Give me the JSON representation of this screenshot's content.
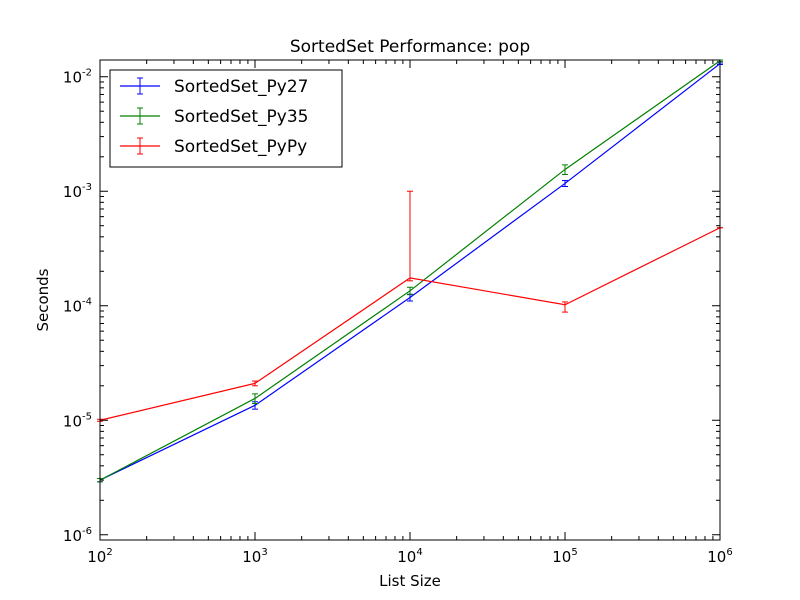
{
  "chart_data": {
    "type": "line",
    "title": "SortedSet Performance: pop",
    "xlabel": "List Size",
    "ylabel": "Seconds",
    "x_scale": "log",
    "y_scale": "log",
    "xlim": [
      100,
      1000000
    ],
    "ylim": [
      9e-07,
      0.014
    ],
    "x_ticks": [
      {
        "value": 100,
        "base": "10",
        "exp": "2"
      },
      {
        "value": 1000,
        "base": "10",
        "exp": "3"
      },
      {
        "value": 10000,
        "base": "10",
        "exp": "4"
      },
      {
        "value": 100000,
        "base": "10",
        "exp": "5"
      },
      {
        "value": 1000000,
        "base": "10",
        "exp": "6"
      }
    ],
    "y_ticks": [
      {
        "value": 1e-06,
        "base": "10",
        "exp": "-6"
      },
      {
        "value": 1e-05,
        "base": "10",
        "exp": "-5"
      },
      {
        "value": 0.0001,
        "base": "10",
        "exp": "-4"
      },
      {
        "value": 0.001,
        "base": "10",
        "exp": "-3"
      },
      {
        "value": 0.01,
        "base": "10",
        "exp": "-2"
      }
    ],
    "x": [
      100,
      1000,
      10000,
      100000,
      1000000
    ],
    "series": [
      {
        "name": "SortedSet_Py27",
        "color": "#0000ff",
        "values": [
          3e-06,
          1.35e-05,
          0.000118,
          0.00117,
          0.013
        ],
        "err_low": [
          2.9e-06,
          1.25e-05,
          0.00011,
          0.0011,
          0.0128
        ],
        "err_high": [
          3.1e-06,
          1.45e-05,
          0.000126,
          0.00124,
          0.0132
        ]
      },
      {
        "name": "SortedSet_Py35",
        "color": "#008000",
        "values": [
          3e-06,
          1.55e-05,
          0.000135,
          0.00155,
          0.0138
        ],
        "err_low": [
          2.9e-06,
          1.4e-05,
          0.000125,
          0.0014,
          0.0136
        ],
        "err_high": [
          3.1e-06,
          1.7e-05,
          0.000145,
          0.0017,
          0.014
        ]
      },
      {
        "name": "SortedSet_PyPy",
        "color": "#ff0000",
        "values": [
          1e-05,
          2.1e-05,
          0.000175,
          0.000102,
          0.00048
        ],
        "err_low": [
          9.8e-06,
          2e-05,
          0.000165,
          8.8e-05,
          0.00048
        ],
        "err_high": [
          1.02e-05,
          2.2e-05,
          0.001,
          0.000108,
          0.00048
        ]
      }
    ],
    "legend_position": "top-left",
    "grid": false
  }
}
